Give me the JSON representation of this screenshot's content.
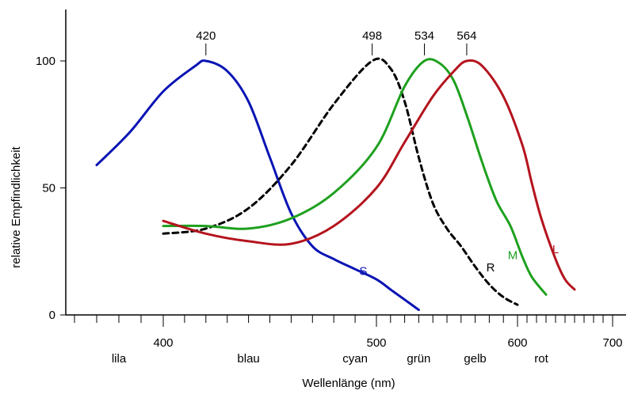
{
  "chart_data": {
    "type": "line",
    "ylabel": "relative Empfindlichkeit",
    "xlabel": "Wellenlänge (nm)",
    "ylim": [
      0,
      100
    ],
    "y_ticks": [
      "0",
      "50",
      "100"
    ],
    "x_ticks": [
      "400",
      "500",
      "600",
      "700"
    ],
    "color_bands": [
      "lila",
      "blau",
      "cyan",
      "grün",
      "gelb",
      "rot"
    ],
    "peak_labels": [
      "420",
      "498",
      "534",
      "564"
    ],
    "grid": false,
    "legend": "none",
    "series": [
      {
        "name": "S",
        "color": "#0a14b4",
        "dash": false,
        "x": [
          370,
          385,
          400,
          415,
          420,
          430,
          440,
          450,
          460,
          470,
          480,
          490,
          500,
          510,
          520,
          530
        ],
        "y": [
          59,
          72,
          88,
          98,
          100,
          96,
          84,
          62,
          40,
          27,
          22,
          18,
          14,
          10,
          6,
          2
        ]
      },
      {
        "name": "R",
        "color": "#000000",
        "dash": true,
        "x": [
          400,
          420,
          440,
          460,
          480,
          498,
          510,
          520,
          530,
          540,
          550,
          560,
          570,
          580,
          590,
          600
        ],
        "y": [
          32,
          34,
          42,
          59,
          83,
          100,
          97,
          84,
          62,
          44,
          34,
          27,
          19,
          12,
          7,
          4
        ]
      },
      {
        "name": "M",
        "color": "#1ea01e",
        "dash": false,
        "x": [
          400,
          420,
          440,
          460,
          480,
          500,
          520,
          534,
          545,
          555,
          565,
          575,
          585,
          595,
          605,
          615,
          630
        ],
        "y": [
          35,
          35,
          34,
          38,
          48,
          66,
          90,
          100,
          99,
          92,
          77,
          60,
          45,
          35,
          23,
          15,
          8
        ]
      },
      {
        "name": "L",
        "color": "#b4141e",
        "dash": false,
        "x": [
          400,
          420,
          440,
          460,
          480,
          500,
          520,
          540,
          555,
          564,
          575,
          590,
          605,
          615,
          625,
          640,
          650,
          660
        ],
        "y": [
          37,
          32,
          29,
          28,
          35,
          50,
          68,
          86,
          96,
          100,
          98,
          86,
          67,
          52,
          38,
          22,
          14,
          10
        ]
      }
    ]
  }
}
